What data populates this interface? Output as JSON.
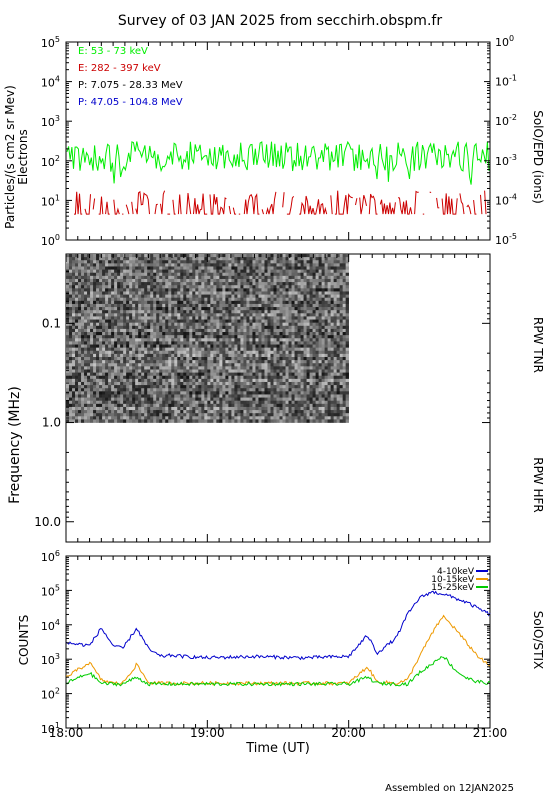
{
  "title": "Survey of 03 JAN 2025 from secchirh.obspm.fr",
  "footer": "Assembled on  12JAN2025",
  "chart_data": [
    {
      "type": "line",
      "panel": "epd",
      "ylabel_left": "Particles/(s cm2 sr Mev)",
      "ylabel_left2": "Electrons",
      "ylabel_right": "SolO/EPD (ions)",
      "y_scale": "log",
      "ylim": [
        1,
        100000
      ],
      "ylim_right": [
        1e-05,
        1
      ],
      "y_ticks": [
        {
          "value": 1,
          "base": "10",
          "exp": "0"
        },
        {
          "value": 10,
          "base": "10",
          "exp": "1"
        },
        {
          "value": 100,
          "base": "10",
          "exp": "2"
        },
        {
          "value": 1000,
          "base": "10",
          "exp": "3"
        },
        {
          "value": 10000,
          "base": "10",
          "exp": "4"
        },
        {
          "value": 100000,
          "base": "10",
          "exp": "5"
        }
      ],
      "y_ticks_right": [
        {
          "value": 1e-05,
          "base": "10",
          "exp": "-5"
        },
        {
          "value": 0.0001,
          "base": "10",
          "exp": "-4"
        },
        {
          "value": 0.001,
          "base": "10",
          "exp": "-3"
        },
        {
          "value": 0.01,
          "base": "10",
          "exp": "-2"
        },
        {
          "value": 0.1,
          "base": "10",
          "exp": "-1"
        },
        {
          "value": 1,
          "base": "10",
          "exp": "0"
        }
      ],
      "legend": [
        {
          "label": "E: 53 - 73 keV",
          "color": "#00ee00"
        },
        {
          "label": "E: 282 - 397 keV",
          "color": "#cc0000"
        },
        {
          "label": "P: 7.075 - 28.33 MeV",
          "color": "#000000"
        },
        {
          "label": "P: 47.05 - 104.8 MeV",
          "color": "#0000cc"
        }
      ],
      "series": [
        {
          "name": "E: 53 - 73 keV",
          "color": "#00ee00",
          "typical": 130
        },
        {
          "name": "E: 282 - 397 keV",
          "color": "#cc0000",
          "typical": 8
        }
      ]
    },
    {
      "type": "heatmap",
      "panel": "rpw",
      "ylabel": "Frequency (MHz)",
      "label_tnr": "RPW TNR",
      "label_hfr": "RPW HFR",
      "y_scale": "log",
      "y_reversed": true,
      "ylim": [
        0.02,
        16
      ],
      "y_ticks": [
        {
          "value": 0.1,
          "label": "0.1"
        },
        {
          "value": 1.0,
          "label": "1.0"
        },
        {
          "value": 10.0,
          "label": "10.0"
        }
      ],
      "data_time_range": [
        "18:00",
        "20:00"
      ],
      "data_freq_range": [
        0.02,
        1.0
      ]
    },
    {
      "type": "line",
      "panel": "stix",
      "ylabel_left": "COUNTS",
      "ylabel_right": "SolO/STIX",
      "xlabel": "Time (UT)",
      "y_scale": "log",
      "ylim": [
        10,
        1000000
      ],
      "y_ticks": [
        {
          "value": 10,
          "base": "10",
          "exp": "1"
        },
        {
          "value": 100,
          "base": "10",
          "exp": "2"
        },
        {
          "value": 1000,
          "base": "10",
          "exp": "3"
        },
        {
          "value": 10000,
          "base": "10",
          "exp": "4"
        },
        {
          "value": 100000,
          "base": "10",
          "exp": "5"
        },
        {
          "value": 1000000,
          "base": "10",
          "exp": "6"
        }
      ],
      "x": [
        "18:00",
        "18:10",
        "18:15",
        "18:20",
        "18:24",
        "18:30",
        "18:35",
        "18:40",
        "18:45",
        "18:50",
        "19:00",
        "19:20",
        "19:40",
        "19:50",
        "20:00",
        "20:08",
        "20:12",
        "20:20",
        "20:25",
        "20:30",
        "20:35",
        "20:40",
        "20:45",
        "20:50",
        "20:55",
        "21:00"
      ],
      "series": [
        {
          "name": "4-10keV",
          "color": "#0000cc",
          "values": [
            3000,
            2500,
            8000,
            2500,
            2000,
            8000,
            2000,
            1200,
            1300,
            1200,
            1100,
            1200,
            1100,
            1150,
            1200,
            5000,
            1500,
            4000,
            20000,
            60000,
            90000,
            80000,
            60000,
            45000,
            30000,
            20000
          ]
        },
        {
          "name": "10-15keV",
          "color": "#ee9900",
          "values": [
            300,
            800,
            250,
            200,
            200,
            700,
            210,
            200,
            200,
            200,
            200,
            200,
            200,
            200,
            200,
            600,
            220,
            200,
            250,
            1200,
            5000,
            18000,
            8000,
            3000,
            1200,
            600
          ]
        },
        {
          "name": "15-25keV",
          "color": "#00cc00",
          "values": [
            200,
            400,
            200,
            190,
            190,
            300,
            190,
            190,
            190,
            190,
            190,
            190,
            190,
            190,
            190,
            300,
            200,
            190,
            190,
            400,
            700,
            1300,
            500,
            280,
            220,
            200
          ]
        }
      ]
    }
  ],
  "x_axis": {
    "ticks": [
      "18:00",
      "19:00",
      "20:00",
      "21:00"
    ],
    "range_hours": [
      18,
      21
    ]
  }
}
